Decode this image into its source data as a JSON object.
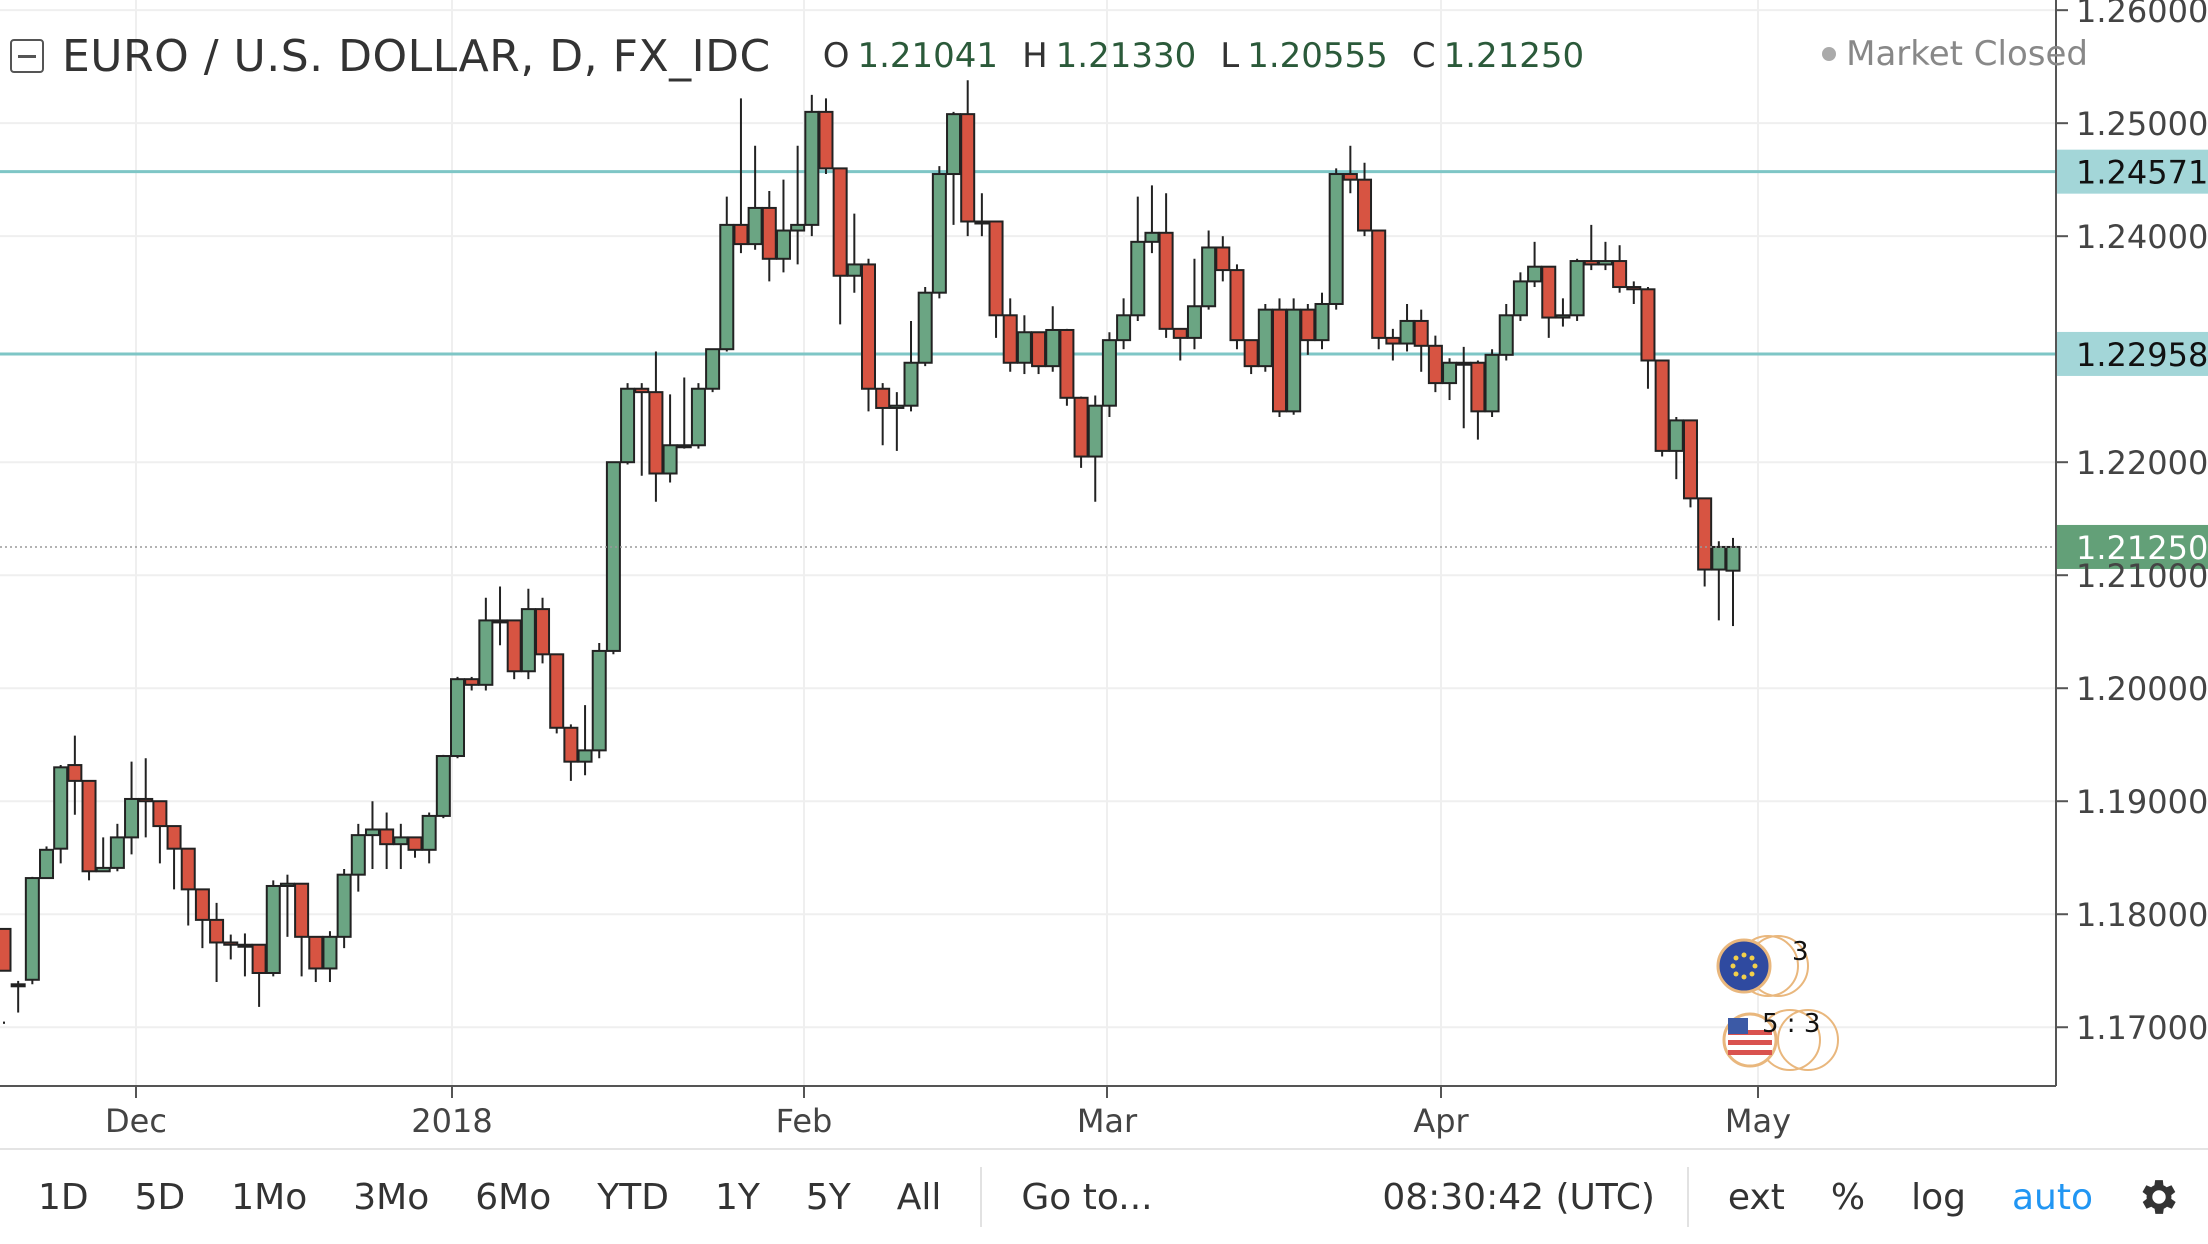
{
  "header": {
    "title": "EURO / U.S. DOLLAR, D, FX_IDC",
    "open_label": "O",
    "open": "1.21041",
    "high_label": "H",
    "high": "1.21330",
    "low_label": "L",
    "low": "1.20555",
    "close_label": "C",
    "close": "1.21250",
    "market_status": "Market Closed"
  },
  "toolbar": {
    "ranges": [
      "1D",
      "5D",
      "1Mo",
      "3Mo",
      "6Mo",
      "YTD",
      "1Y",
      "5Y",
      "All"
    ],
    "goto": "Go to...",
    "clock": "08:30:42 (UTC)",
    "ext": "ext",
    "percent": "%",
    "log": "log",
    "auto": "auto"
  },
  "events": {
    "eu_count": "3",
    "us_count": "5 : 3"
  },
  "colors": {
    "up": "#6ba583",
    "down": "#d75442",
    "outline": "#222222",
    "hline": "#7ec6c6",
    "price_tag": "#63a078",
    "level_tag": "#a3d6d8",
    "grid": "#efefef"
  },
  "chart_data": {
    "type": "candlestick",
    "symbol": "EURUSD",
    "ylim": [
      1.1648,
      1.2609
    ],
    "y_ticks": [
      "1.17000",
      "1.18000",
      "1.19000",
      "1.20000",
      "1.21000",
      "1.22000",
      "1.24000",
      "1.25000",
      "1.26000"
    ],
    "x_ticks": [
      "Dec",
      "2018",
      "Feb",
      "Mar",
      "Apr",
      "May"
    ],
    "horizontal_levels": [
      "1.24571",
      "1.22958"
    ],
    "last_price": "1.21250",
    "candles": [
      [
        1.1787,
        1.175,
        1.1703
      ],
      [
        1.1738,
        1.1738,
        1.1741
      ],
      [
        1.1742,
        1.1832,
        1.1833
      ],
      [
        1.1832,
        1.1857,
        1.186
      ],
      [
        1.1858,
        1.193,
        1.1932
      ],
      [
        1.1932,
        1.1918,
        1.1958
      ],
      [
        1.1918,
        1.1838,
        1.1845
      ],
      [
        1.1838,
        1.1841,
        1.1868
      ],
      [
        1.1841,
        1.1868,
        1.188
      ],
      [
        1.1868,
        1.1902,
        1.1935
      ],
      [
        1.1902,
        1.19,
        1.1938
      ],
      [
        1.19,
        1.1878,
        1.1886
      ],
      [
        1.1878,
        1.1858,
        1.1876
      ],
      [
        1.1858,
        1.1822,
        1.183
      ],
      [
        1.1822,
        1.1795,
        1.1802
      ],
      [
        1.1795,
        1.1775,
        1.181
      ],
      [
        1.1775,
        1.1773,
        1.1782
      ],
      [
        1.1773,
        1.1773,
        1.1783
      ],
      [
        1.1773,
        1.1748,
        1.1752
      ],
      [
        1.1748,
        1.1825,
        1.183
      ],
      [
        1.1825,
        1.1827,
        1.1835
      ],
      [
        1.1827,
        1.178,
        1.1782
      ],
      [
        1.178,
        1.1752,
        1.1758
      ],
      [
        1.1752,
        1.178,
        1.1785
      ],
      [
        1.178,
        1.1835,
        1.184
      ],
      [
        1.1835,
        1.187,
        1.188
      ],
      [
        1.187,
        1.1875,
        1.19
      ],
      [
        1.1875,
        1.1862,
        1.189
      ],
      [
        1.1862,
        1.1868,
        1.188
      ],
      [
        1.1868,
        1.1857,
        1.1865
      ],
      [
        1.1857,
        1.1887,
        1.189
      ],
      [
        1.1887,
        1.194,
        1.1941
      ],
      [
        1.194,
        1.2008,
        1.201
      ],
      [
        1.2008,
        1.2003,
        1.201
      ],
      [
        1.2003,
        1.206,
        1.208
      ],
      [
        1.206,
        1.206,
        1.209
      ],
      [
        1.206,
        1.2015,
        1.202
      ],
      [
        1.2015,
        1.207,
        1.2088
      ],
      [
        1.207,
        1.203,
        1.208
      ],
      [
        1.203,
        1.1965,
        1.197
      ],
      [
        1.1965,
        1.1935,
        1.1968
      ],
      [
        1.1935,
        1.1945,
        1.1985
      ],
      [
        1.1945,
        1.2033,
        1.204
      ],
      [
        1.2033,
        1.22,
        1.22
      ],
      [
        1.22,
        1.2265,
        1.227
      ],
      [
        1.2265,
        1.2262,
        1.227
      ],
      [
        1.2262,
        1.219,
        1.2298
      ],
      [
        1.219,
        1.2215,
        1.226
      ],
      [
        1.2215,
        1.2215,
        1.2275
      ],
      [
        1.2215,
        1.2265,
        1.227
      ],
      [
        1.2265,
        1.23,
        1.23
      ],
      [
        1.23,
        1.241,
        1.2435
      ],
      [
        1.241,
        1.2393,
        1.2522
      ],
      [
        1.2393,
        1.2425,
        1.248
      ],
      [
        1.2425,
        1.238,
        1.244
      ],
      [
        1.238,
        1.2405,
        1.245
      ],
      [
        1.2405,
        1.241,
        1.248
      ],
      [
        1.241,
        1.251,
        1.2525
      ],
      [
        1.251,
        1.246,
        1.2522
      ],
      [
        1.246,
        1.2365,
        1.246
      ],
      [
        1.2365,
        1.2375,
        1.242
      ],
      [
        1.2375,
        1.2265,
        1.238
      ],
      [
        1.2265,
        1.2248,
        1.227
      ],
      [
        1.2248,
        1.225,
        1.2262
      ],
      [
        1.225,
        1.2288,
        1.2325
      ],
      [
        1.2288,
        1.235,
        1.2355
      ],
      [
        1.235,
        1.2455,
        1.2462
      ],
      [
        1.2455,
        1.2508,
        1.251
      ],
      [
        1.2508,
        1.2413,
        1.2538
      ],
      [
        1.2413,
        1.2413,
        1.2438
      ],
      [
        1.2413,
        1.233,
        1.2413
      ],
      [
        1.233,
        1.2288,
        1.2345
      ],
      [
        1.2288,
        1.2315,
        1.233
      ],
      [
        1.2315,
        1.2285,
        1.2315
      ],
      [
        1.2285,
        1.2317,
        1.2338
      ],
      [
        1.2317,
        1.2257,
        1.2318
      ],
      [
        1.2257,
        1.2205,
        1.2258
      ],
      [
        1.2205,
        1.225,
        1.2259
      ],
      [
        1.225,
        1.2308,
        1.2315
      ],
      [
        1.2308,
        1.233,
        1.2345
      ],
      [
        1.233,
        1.2395,
        1.2435
      ],
      [
        1.2395,
        1.2403,
        1.2445
      ],
      [
        1.2403,
        1.2318,
        1.2438
      ],
      [
        1.2318,
        1.231,
        1.2318
      ],
      [
        1.231,
        1.2338,
        1.238
      ],
      [
        1.2338,
        1.239,
        1.2405
      ],
      [
        1.239,
        1.237,
        1.24
      ],
      [
        1.237,
        1.2308,
        1.2375
      ],
      [
        1.2308,
        1.2285,
        1.2298
      ],
      [
        1.2285,
        1.2335,
        1.234
      ],
      [
        1.2335,
        1.2245,
        1.2345
      ],
      [
        1.2245,
        1.2335,
        1.2345
      ],
      [
        1.2335,
        1.2308,
        1.234
      ],
      [
        1.2308,
        1.234,
        1.235
      ],
      [
        1.234,
        1.2455,
        1.246
      ],
      [
        1.2455,
        1.245,
        1.248
      ],
      [
        1.245,
        1.2405,
        1.2465
      ],
      [
        1.2405,
        1.231,
        1.2405
      ],
      [
        1.231,
        1.2305,
        1.2318
      ],
      [
        1.2305,
        1.2325,
        1.234
      ],
      [
        1.2325,
        1.2303,
        1.2335
      ],
      [
        1.2303,
        1.227,
        1.2312
      ],
      [
        1.227,
        1.2288,
        1.2292
      ],
      [
        1.2288,
        1.2288,
        1.2302
      ],
      [
        1.2288,
        1.2245,
        1.229
      ],
      [
        1.2245,
        1.2295,
        1.23
      ],
      [
        1.2295,
        1.233,
        1.234
      ],
      [
        1.233,
        1.236,
        1.2368
      ],
      [
        1.236,
        1.2373,
        1.2395
      ],
      [
        1.2373,
        1.2328,
        1.2373
      ],
      [
        1.2328,
        1.233,
        1.2345
      ],
      [
        1.233,
        1.2378,
        1.238
      ],
      [
        1.2378,
        1.2375,
        1.241
      ],
      [
        1.2375,
        1.2378,
        1.2395
      ],
      [
        1.2378,
        1.2355,
        1.2392
      ],
      [
        1.2355,
        1.2353,
        1.236
      ],
      [
        1.2353,
        1.229,
        1.2355
      ],
      [
        1.229,
        1.221,
        1.229
      ],
      [
        1.221,
        1.2237,
        1.224
      ],
      [
        1.2237,
        1.2168,
        1.2237
      ],
      [
        1.2168,
        1.2105,
        1.2168
      ],
      [
        1.2105,
        1.2125,
        1.213
      ],
      [
        1.2104,
        1.2125,
        1.2133
      ]
    ],
    "candle_lows": [
      1.1705,
      1.1713,
      1.1738,
      1.1832,
      1.1845,
      1.1888,
      1.183,
      1.1838,
      1.1838,
      1.1853,
      1.1868,
      1.1845,
      1.1822,
      1.179,
      1.177,
      1.174,
      1.176,
      1.1745,
      1.1718,
      1.1745,
      1.178,
      1.1745,
      1.174,
      1.174,
      1.177,
      1.182,
      1.184,
      1.184,
      1.184,
      1.185,
      1.1845,
      1.1885,
      1.1938,
      1.1998,
      1.1998,
      1.2038,
      1.2008,
      1.2008,
      1.2022,
      1.196,
      1.1918,
      1.1923,
      1.1938,
      1.203,
      1.2198,
      1.2188,
      1.2165,
      1.2182,
      1.2212,
      1.2212,
      1.2262,
      1.2298,
      1.2385,
      1.2388,
      1.236,
      1.2368,
      1.2375,
      1.24,
      1.2455,
      1.2322,
      1.235,
      1.2245,
      1.2215,
      1.221,
      1.2245,
      1.2285,
      1.2345,
      1.241,
      1.24,
      1.24,
      1.231,
      1.228,
      1.2278,
      1.2278,
      1.228,
      1.225,
      1.2195,
      1.2165,
      1.224,
      1.23,
      1.2325,
      1.2385,
      1.231,
      1.229,
      1.23,
      1.2335,
      1.236,
      1.23,
      1.2278,
      1.228,
      1.224,
      1.2242,
      1.2295,
      1.23,
      1.2335,
      1.2438,
      1.24,
      1.23,
      1.229,
      1.2298,
      1.228,
      1.2262,
      1.2255,
      1.223,
      1.222,
      1.224,
      1.229,
      1.2325,
      1.2355,
      1.231,
      1.232,
      1.2325,
      1.237,
      1.237,
      1.235,
      1.234,
      1.2265,
      1.2205,
      1.2185,
      1.216,
      1.209,
      1.206,
      1.2055
    ]
  }
}
